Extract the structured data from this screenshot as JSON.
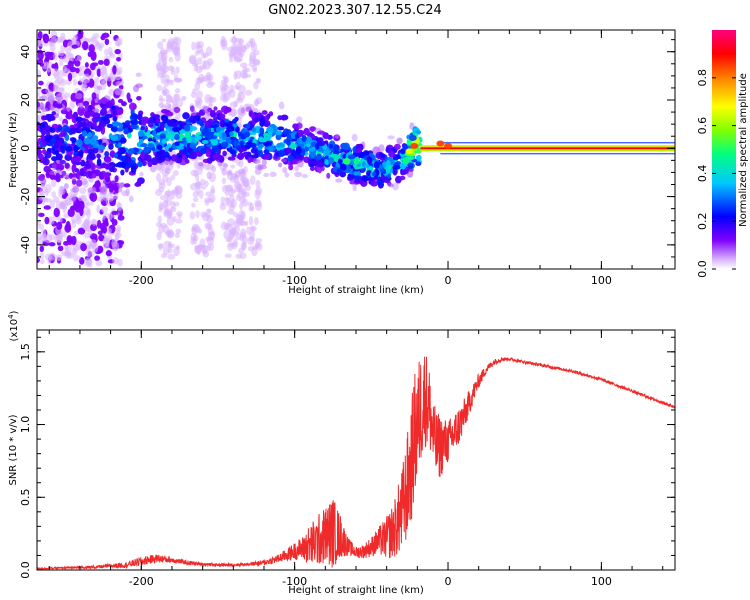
{
  "figure_title": "GN02.2023.307.12.55.C24",
  "chart_data": [
    {
      "type": "heatmap",
      "title": "GN02.2023.307.12.55.C24",
      "xlabel": "Height of straight line (km)",
      "ylabel": "Frequency (Hz)",
      "xlim": [
        -268,
        148
      ],
      "ylim": [
        -50,
        49
      ],
      "xticks": [
        -200,
        -100,
        0,
        100
      ],
      "xtick_labels": [
        "-200",
        "-100",
        "0",
        "100"
      ],
      "yticks": [
        -40,
        -20,
        0,
        20,
        40
      ],
      "ytick_labels": [
        "-40",
        "-20",
        "0",
        "20",
        "40"
      ],
      "colorbar": {
        "label": "Normalized spectral amplitude",
        "range": [
          0,
          1
        ],
        "ticks": [
          0.0,
          0.2,
          0.4,
          0.6,
          0.8
        ],
        "tick_labels": [
          "0.0",
          "0.2",
          "0.4",
          "0.6",
          "0.8"
        ],
        "colormap": [
          "#ffffff",
          "#d9b3ff",
          "#8000ff",
          "#0000ff",
          "#00c8ff",
          "#00ff80",
          "#80ff00",
          "#ffff00",
          "#ff8000",
          "#ff0000",
          "#ff0080"
        ]
      },
      "band_center_frequency": [
        {
          "x": -268,
          "f": 3,
          "amp": 0.25
        },
        {
          "x": -220,
          "f": 4,
          "amp": 0.35
        },
        {
          "x": -200,
          "f": 4,
          "amp": 0.45
        },
        {
          "x": -150,
          "f": 5,
          "amp": 0.45
        },
        {
          "x": -110,
          "f": 4,
          "amp": 0.45
        },
        {
          "x": -90,
          "f": 0,
          "amp": 0.45
        },
        {
          "x": -75,
          "f": -3,
          "amp": 0.5
        },
        {
          "x": -60,
          "f": -6,
          "amp": 0.5
        },
        {
          "x": -45,
          "f": -9,
          "amp": 0.45
        },
        {
          "x": -30,
          "f": -5,
          "amp": 0.45
        },
        {
          "x": -22,
          "f": 1,
          "amp": 0.85
        },
        {
          "x": -10,
          "f": 0,
          "amp": 0.85
        },
        {
          "x": 5,
          "f": 0,
          "amp": 0.9
        },
        {
          "x": 50,
          "f": 0,
          "amp": 0.9
        },
        {
          "x": 100,
          "f": 0,
          "amp": 0.9
        },
        {
          "x": 148,
          "f": 0,
          "amp": 0.85
        }
      ]
    },
    {
      "type": "line",
      "xlabel": "Height of straight line (km)",
      "ylabel": "SNR (10 * v/v)",
      "y_multiplier": "(x10",
      "y_multiplier_exp": "4",
      "y_multiplier_close": ")",
      "xlim": [
        -268,
        148
      ],
      "ylim": [
        0,
        1.65
      ],
      "xticks": [
        -200,
        -100,
        0,
        100
      ],
      "xtick_labels": [
        "-200",
        "-100",
        "0",
        "100"
      ],
      "yticks": [
        0.0,
        0.5,
        1.0,
        1.5
      ],
      "ytick_labels": [
        "0.0",
        "0.5",
        "1.0",
        "1.5"
      ],
      "series": [
        {
          "color": "#ee2a2a",
          "x": [
            -268,
            -250,
            -230,
            -210,
            -200,
            -190,
            -180,
            -170,
            -160,
            -150,
            -140,
            -130,
            -120,
            -110,
            -100,
            -95,
            -90,
            -85,
            -80,
            -75,
            -70,
            -65,
            -60,
            -55,
            -50,
            -45,
            -40,
            -35,
            -30,
            -25,
            -22,
            -18,
            -15,
            -12,
            -10,
            -8,
            -5,
            0,
            5,
            10,
            15,
            20,
            25,
            30,
            35,
            40,
            50,
            60,
            70,
            80,
            90,
            100,
            110,
            120,
            130,
            140,
            148
          ],
          "y": [
            0.01,
            0.015,
            0.02,
            0.035,
            0.06,
            0.08,
            0.07,
            0.05,
            0.04,
            0.035,
            0.035,
            0.04,
            0.05,
            0.08,
            0.13,
            0.15,
            0.17,
            0.2,
            0.24,
            0.26,
            0.23,
            0.16,
            0.12,
            0.13,
            0.16,
            0.2,
            0.22,
            0.28,
            0.4,
            0.65,
            0.9,
            1.1,
            1.2,
            1.1,
            0.95,
            0.85,
            0.85,
            0.88,
            0.95,
            1.05,
            1.18,
            1.3,
            1.38,
            1.43,
            1.45,
            1.45,
            1.43,
            1.41,
            1.39,
            1.37,
            1.34,
            1.31,
            1.27,
            1.23,
            1.19,
            1.15,
            1.12
          ],
          "noise_amplitude": [
            0.005,
            0.005,
            0.01,
            0.02,
            0.03,
            0.03,
            0.02,
            0.015,
            0.01,
            0.01,
            0.01,
            0.01,
            0.02,
            0.03,
            0.06,
            0.08,
            0.15,
            0.18,
            0.2,
            0.25,
            0.15,
            0.06,
            0.04,
            0.05,
            0.07,
            0.1,
            0.15,
            0.2,
            0.3,
            0.4,
            0.45,
            0.4,
            0.35,
            0.3,
            0.25,
            0.25,
            0.22,
            0.15,
            0.15,
            0.12,
            0.08,
            0.05,
            0.03,
            0.02,
            0.015,
            0.01,
            0.01,
            0.01,
            0.01,
            0.01,
            0.01,
            0.01,
            0.01,
            0.01,
            0.01,
            0.01,
            0.01
          ]
        }
      ]
    }
  ]
}
